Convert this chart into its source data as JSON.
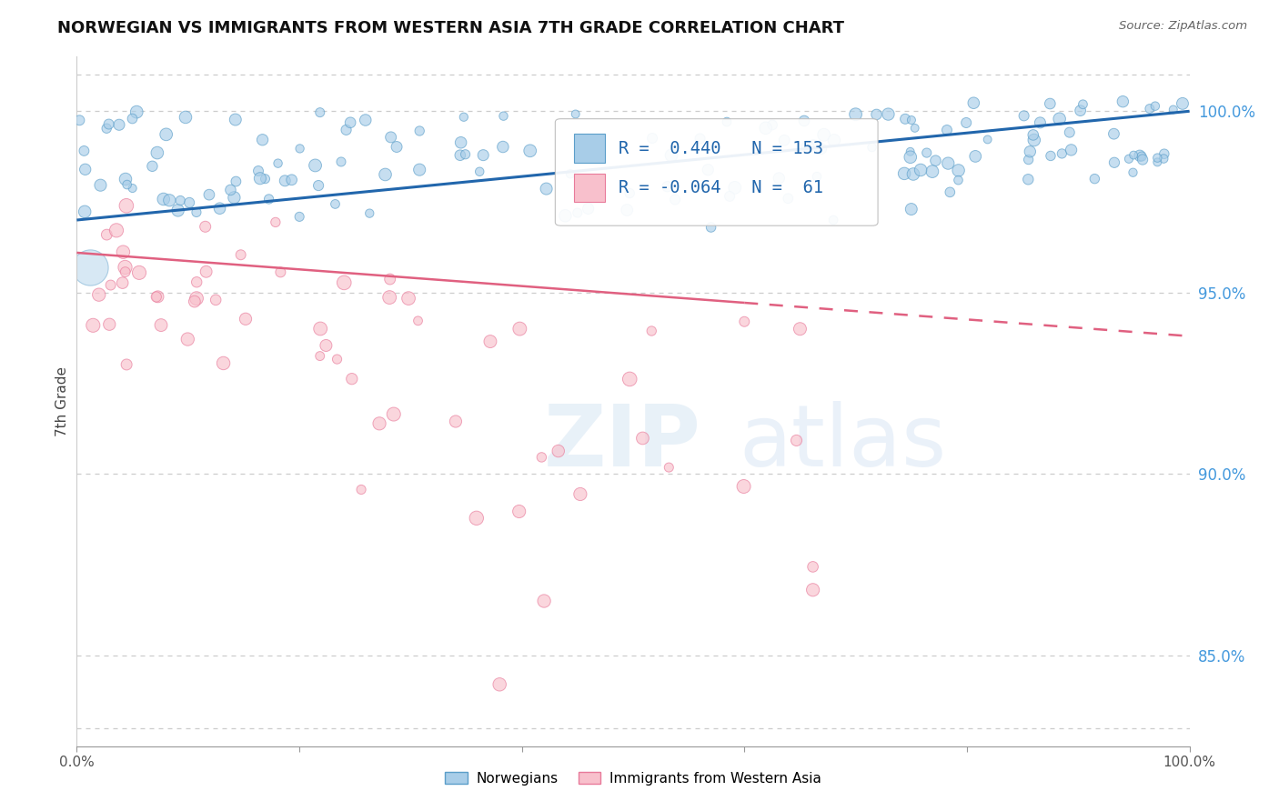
{
  "title": "NORWEGIAN VS IMMIGRANTS FROM WESTERN ASIA 7TH GRADE CORRELATION CHART",
  "source": "Source: ZipAtlas.com",
  "ylabel": "7th Grade",
  "xlim": [
    0.0,
    100.0
  ],
  "ylim": [
    82.5,
    101.5
  ],
  "r_norwegian": 0.44,
  "n_norwegian": 153,
  "r_immigrants": -0.064,
  "n_immigrants": 61,
  "blue_color": "#a8cde8",
  "blue_edge_color": "#5b9ec9",
  "blue_line_color": "#2166ac",
  "pink_color": "#f8c0cc",
  "pink_edge_color": "#e87a9a",
  "pink_line_color": "#e06080",
  "legend_label_1": "Norwegians",
  "legend_label_2": "Immigrants from Western Asia",
  "background_color": "#ffffff",
  "grid_color": "#cccccc",
  "title_color": "#111111",
  "source_color": "#666666",
  "ytick_labels": [
    "85.0%",
    "90.0%",
    "95.0%",
    "100.0%"
  ],
  "ytick_values": [
    85,
    90,
    95,
    100
  ],
  "nor_line_y0": 97.0,
  "nor_line_y1": 100.0,
  "imm_line_y0": 96.1,
  "imm_line_y1": 93.8,
  "imm_line_solid_end": 60,
  "imm_line_dash_start": 60
}
